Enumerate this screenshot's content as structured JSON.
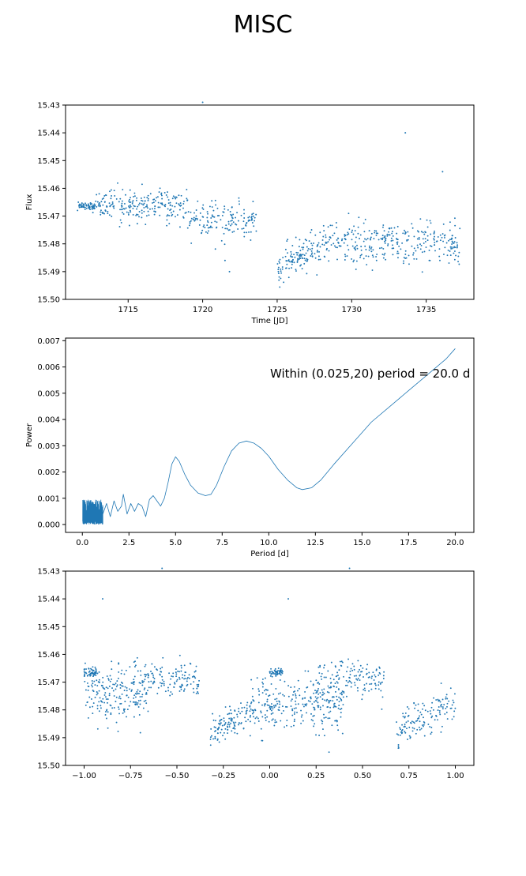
{
  "figure": {
    "title": "MISC",
    "colors": {
      "series": "#1f77b4",
      "axes": "#000000",
      "background": "#ffffff"
    }
  },
  "chart_data": [
    {
      "type": "scatter",
      "xlabel": "Time [JD]",
      "ylabel": "Flux",
      "xlim": [
        1710.8,
        1738.2
      ],
      "ylim": [
        15.43,
        15.5
      ],
      "y_inverted": true,
      "xticks": [
        1715,
        1720,
        1725,
        1730,
        1735
      ],
      "yticks": [
        15.43,
        15.44,
        15.45,
        15.46,
        15.47,
        15.48,
        15.49,
        15.5
      ],
      "clusters": [
        {
          "x_range": [
            1711.6,
            1712.8
          ],
          "y_center": 15.4665,
          "y_spread": 0.0015,
          "count": 60
        },
        {
          "x_range": [
            1712.8,
            1719.0
          ],
          "y_center": 15.466,
          "y_spread": 0.006,
          "count": 230
        },
        {
          "x_range": [
            1719.0,
            1723.6
          ],
          "y_center": 15.471,
          "y_spread": 0.0065,
          "count": 150
        },
        {
          "x_range": [
            1725.0,
            1728.0
          ],
          "y_start": 15.49,
          "y_end": 15.482,
          "y_spread": 0.006,
          "count": 130
        },
        {
          "x_range": [
            1728.0,
            1737.3
          ],
          "y_center": 15.479,
          "y_spread": 0.0075,
          "count": 330
        }
      ],
      "outliers": [
        {
          "x": 1720.0,
          "y": 15.429
        },
        {
          "x": 1733.6,
          "y": 15.44
        },
        {
          "x": 1721.8,
          "y": 15.49
        },
        {
          "x": 1721.5,
          "y": 15.486
        },
        {
          "x": 1736.1,
          "y": 15.454
        }
      ]
    },
    {
      "type": "line",
      "xlabel": "Period [d]",
      "ylabel": "Power",
      "xlim": [
        -0.9,
        21.0
      ],
      "ylim": [
        -0.0003,
        0.0071
      ],
      "xticks": [
        0.0,
        2.5,
        5.0,
        7.5,
        10.0,
        12.5,
        15.0,
        17.5,
        20.0
      ],
      "yticks": [
        0.0,
        0.001,
        0.002,
        0.003,
        0.004,
        0.005,
        0.006,
        0.007
      ],
      "annotation": "Within (0.025,20) period = 20.0 d",
      "series": [
        {
          "x": [
            1.1,
            1.3,
            1.5,
            1.7,
            1.9,
            2.1,
            2.2,
            2.4,
            2.6,
            2.8,
            3.0,
            3.2,
            3.4,
            3.6,
            3.8,
            4.0,
            4.2,
            4.4,
            4.6,
            4.8,
            5.0,
            5.2,
            5.5,
            5.8,
            6.2,
            6.6,
            6.9,
            7.2,
            7.6,
            8.0,
            8.4,
            8.8,
            9.2,
            9.6,
            10.0,
            10.5,
            11.0,
            11.5,
            11.8,
            12.3,
            12.8,
            13.5,
            14.5,
            15.5,
            16.5,
            17.5,
            18.5,
            19.5,
            20.0
          ],
          "y": [
            0.0004,
            0.0008,
            0.0003,
            0.0009,
            0.0005,
            0.0007,
            0.00115,
            0.0004,
            0.0008,
            0.0005,
            0.0008,
            0.0007,
            0.0003,
            0.00095,
            0.0011,
            0.0009,
            0.0007,
            0.001,
            0.0016,
            0.0023,
            0.00258,
            0.0024,
            0.0019,
            0.0015,
            0.0012,
            0.0011,
            0.00115,
            0.0015,
            0.0022,
            0.0028,
            0.0031,
            0.00318,
            0.0031,
            0.0029,
            0.0026,
            0.0021,
            0.0017,
            0.0014,
            0.00133,
            0.0014,
            0.0017,
            0.0023,
            0.0031,
            0.0039,
            0.0045,
            0.0051,
            0.0057,
            0.0063,
            0.0067
          ]
        }
      ],
      "dense_region": {
        "x_range": [
          0.02,
          1.1
        ],
        "y_max": 0.00095
      }
    },
    {
      "type": "scatter",
      "xlabel": "",
      "ylabel": "",
      "xlim": [
        -1.1,
        1.1
      ],
      "ylim": [
        15.43,
        15.5
      ],
      "y_inverted": true,
      "xticks": [
        -1.0,
        -0.75,
        -0.5,
        -0.25,
        0.0,
        0.25,
        0.5,
        0.75,
        1.0
      ],
      "yticks": [
        15.43,
        15.44,
        15.45,
        15.46,
        15.47,
        15.48,
        15.49,
        15.5
      ],
      "clusters": [
        {
          "x_range": [
            -1.0,
            -0.93
          ],
          "y_center": 15.4665,
          "y_spread": 0.0015,
          "count": 50
        },
        {
          "x_range": [
            -1.0,
            -0.65
          ],
          "y_center": 15.474,
          "y_spread": 0.01,
          "count": 200
        },
        {
          "x_range": [
            -0.75,
            -0.38
          ],
          "y_center": 15.469,
          "y_spread": 0.0065,
          "count": 140
        },
        {
          "x_range": [
            -0.32,
            -0.1
          ],
          "y_start": 15.491,
          "y_end": 15.481,
          "y_spread": 0.006,
          "count": 120
        },
        {
          "x_range": [
            -0.1,
            0.4
          ],
          "y_center": 15.478,
          "y_spread": 0.009,
          "count": 280
        },
        {
          "x_range": [
            0.0,
            0.07
          ],
          "y_center": 15.4665,
          "y_spread": 0.0015,
          "count": 50
        },
        {
          "x_range": [
            0.25,
            0.62
          ],
          "y_center": 15.469,
          "y_spread": 0.0065,
          "count": 140
        },
        {
          "x_range": [
            0.68,
            1.0
          ],
          "y_start": 15.49,
          "y_end": 15.479,
          "y_spread": 0.0065,
          "count": 140
        }
      ],
      "outliers": [
        {
          "x": -0.58,
          "y": 15.429
        },
        {
          "x": 0.43,
          "y": 15.429
        },
        {
          "x": -0.9,
          "y": 15.44
        },
        {
          "x": 0.1,
          "y": 15.44
        }
      ]
    }
  ]
}
